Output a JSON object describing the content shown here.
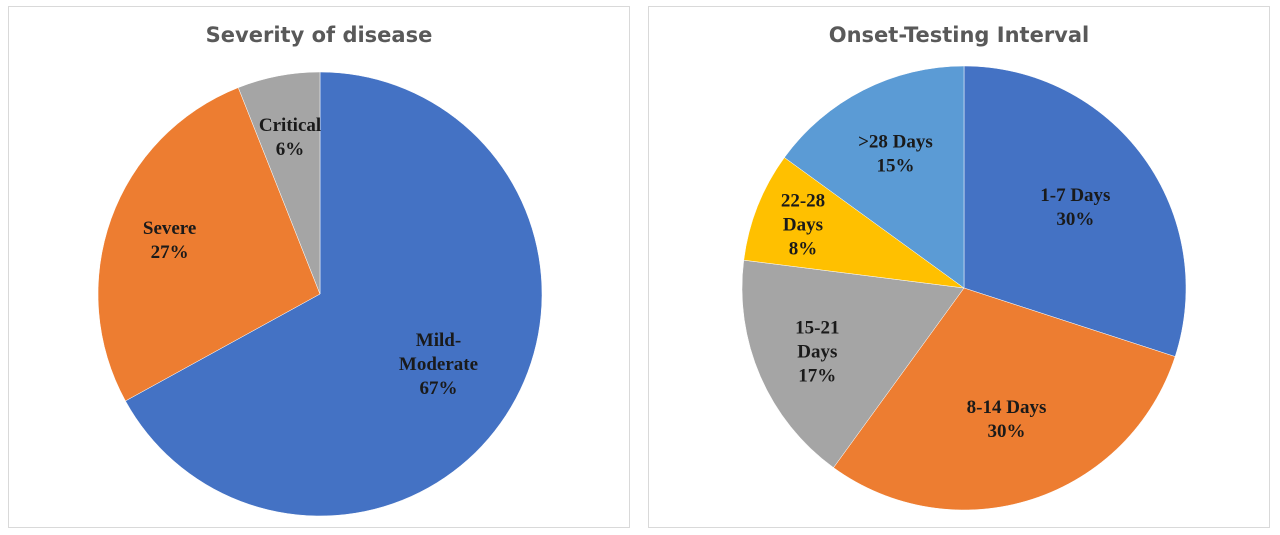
{
  "chart_data": [
    {
      "type": "pie",
      "title": "Severity of disease",
      "slices": [
        {
          "label": "Mild-Moderate",
          "display_lines": [
            "Mild-",
            "Moderate",
            "67%"
          ],
          "value": 67,
          "color": "#4472C4"
        },
        {
          "label": "Severe",
          "display_lines": [
            "Severe",
            "27%"
          ],
          "value": 27,
          "color": "#ED7D31"
        },
        {
          "label": "Critical",
          "display_lines": [
            "Critical",
            "6%"
          ],
          "value": 6,
          "color": "#A5A5A5"
        }
      ],
      "start_angle_deg": 0,
      "direction": "clockwise",
      "legend": "none"
    },
    {
      "type": "pie",
      "title": "Onset-Testing Interval",
      "slices": [
        {
          "label": "1-7 Days",
          "display_lines": [
            "1-7 Days",
            "30%"
          ],
          "value": 30,
          "color": "#4472C4"
        },
        {
          "label": "8-14 Days",
          "display_lines": [
            "8-14 Days",
            "30%"
          ],
          "value": 30,
          "color": "#ED7D31"
        },
        {
          "label": "15-21 Days",
          "display_lines": [
            "15-21",
            "Days",
            "17%"
          ],
          "value": 17,
          "color": "#A5A5A5"
        },
        {
          "label": "22-28 Days",
          "display_lines": [
            "22-28",
            "Days",
            "8%"
          ],
          "value": 8,
          "color": "#FFC000"
        },
        {
          "label": ">28 Days",
          "display_lines": [
            ">28 Days",
            "15%"
          ],
          "value": 15,
          "color": "#5B9BD5"
        }
      ],
      "start_angle_deg": 0,
      "direction": "clockwise",
      "legend": "none"
    }
  ]
}
